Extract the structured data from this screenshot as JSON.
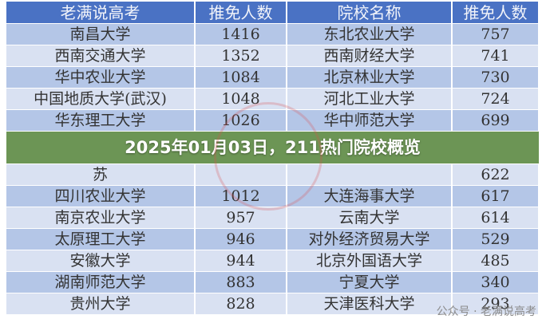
{
  "table": {
    "headers": [
      "老满说高考",
      "推免人数",
      "院校名称",
      "推免人数"
    ],
    "rows": [
      [
        "南昌大学",
        "1416",
        "东北农业大学",
        "757"
      ],
      [
        "西南交通大学",
        "1352",
        "西南财经大学",
        "741"
      ],
      [
        "华中农业大学",
        "1084",
        "北京林业大学",
        "730"
      ],
      [
        "中国地质大学(武汉)",
        "1048",
        "河北工业大学",
        "724"
      ],
      [
        "华东理工大学",
        "1026",
        "华中师范大学",
        "699"
      ],
      [
        "苏",
        "",
        "",
        "622"
      ],
      [
        "四川农业大学",
        "1012",
        "大连海事大学",
        "617"
      ],
      [
        "南京农业大学",
        "957",
        "云南大学",
        "614"
      ],
      [
        "太原理工大学",
        "946",
        "对外经济贸易大学",
        "529"
      ],
      [
        "安徽大学",
        "944",
        "北京外国语大学",
        "485"
      ],
      [
        "湖南师范大学",
        "883",
        "宁夏大学",
        "340"
      ],
      [
        "贵州大学",
        "828",
        "天津医科大学",
        "293"
      ]
    ]
  },
  "banner": {
    "title": "2025年01月03日，211热门院校概览"
  },
  "watermark": "公众号 · 老满说高考",
  "colors": {
    "header": "#4a72c4",
    "row_dark": "#b4c6e7",
    "row_light": "#d9e1f2",
    "banner": "#608c46"
  }
}
